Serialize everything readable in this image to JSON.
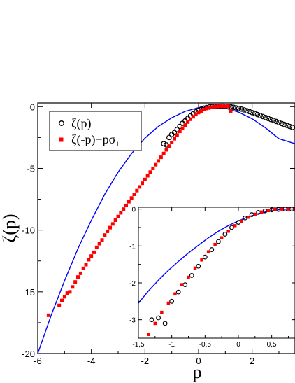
{
  "chart_data": [
    {
      "type": "scatter",
      "role": "main",
      "xlabel": "p",
      "ylabel": "ζ(p)",
      "xlim": [
        -6,
        3.6
      ],
      "ylim": [
        -20,
        0.3
      ],
      "xticks": [
        -6,
        -4,
        -2,
        0,
        2
      ],
      "yticks": [
        0,
        -5,
        -10,
        -15,
        -20
      ],
      "xtick_labels": [
        "-6",
        "-4",
        "-2",
        "0",
        "2"
      ],
      "ytick_labels": [
        "0",
        "-5",
        "-10",
        "-15",
        "-20"
      ],
      "legend": {
        "placement": "top-left",
        "entries": [
          {
            "label": "ζ(p)",
            "marker": "open-circle",
            "color": "#000000"
          },
          {
            "label": "ζ(-p)+pσ",
            "subscript": "+",
            "marker": "filled-square",
            "color": "#ff0000"
          }
        ]
      },
      "series": [
        {
          "name": "ζ(p)",
          "marker": "open-circle",
          "color": "#000000",
          "x": [
            -1.3,
            -1.2,
            -1.1,
            -1.0,
            -0.9,
            -0.8,
            -0.7,
            -0.6,
            -0.5,
            -0.4,
            -0.3,
            -0.2,
            -0.1,
            0.0,
            0.1,
            0.2,
            0.3,
            0.4,
            0.5,
            0.6,
            0.7,
            0.8,
            0.9,
            1.0,
            1.1,
            1.2,
            1.3,
            1.4,
            1.5,
            1.6,
            1.7,
            1.8,
            1.9,
            2.0,
            2.1,
            2.2,
            2.3,
            2.4,
            2.5,
            2.6,
            2.7,
            2.8,
            2.9,
            3.0,
            3.1,
            3.2,
            3.3,
            3.4,
            3.5
          ],
          "y": [
            -3.0,
            -3.1,
            -2.5,
            -2.25,
            -2.1,
            -1.85,
            -1.6,
            -1.35,
            -1.15,
            -0.95,
            -0.75,
            -0.57,
            -0.42,
            -0.3,
            -0.2,
            -0.12,
            -0.07,
            -0.03,
            0.0,
            0.02,
            0.03,
            0.04,
            0.04,
            0.03,
            0.02,
            0.0,
            -0.05,
            -0.1,
            -0.15,
            -0.2,
            -0.26,
            -0.33,
            -0.4,
            -0.48,
            -0.56,
            -0.64,
            -0.72,
            -0.8,
            -0.88,
            -0.96,
            -1.04,
            -1.12,
            -1.2,
            -1.28,
            -1.36,
            -1.44,
            -1.52,
            -1.6,
            -1.68
          ]
        },
        {
          "name": "ζ(-p)+pσ+",
          "marker": "filled-square",
          "color": "#ff0000",
          "x": [
            -5.6,
            -5.2,
            -5.1,
            -5.0,
            -4.9,
            -4.8,
            -4.7,
            -4.6,
            -4.5,
            -4.4,
            -4.3,
            -4.2,
            -4.1,
            -4.0,
            -3.9,
            -3.8,
            -3.7,
            -3.6,
            -3.5,
            -3.4,
            -3.3,
            -3.2,
            -3.1,
            -3.0,
            -2.9,
            -2.8,
            -2.7,
            -2.6,
            -2.5,
            -2.4,
            -2.3,
            -2.2,
            -2.1,
            -2.0,
            -1.9,
            -1.8,
            -1.7,
            -1.6,
            -1.5,
            -1.4,
            -1.3,
            -1.2,
            -1.1,
            -1.0,
            -0.9,
            -0.8,
            -0.7,
            -0.6,
            -0.5,
            -0.4,
            -0.3,
            -0.2,
            -0.1,
            0.0,
            0.1,
            0.2,
            0.3,
            0.4,
            0.5,
            0.6,
            0.7,
            0.8,
            0.9,
            1.0,
            1.1,
            1.2
          ],
          "y": [
            -16.9,
            -16.1,
            -15.7,
            -15.4,
            -15.1,
            -15.0,
            -14.6,
            -14.2,
            -13.8,
            -13.5,
            -13.1,
            -12.8,
            -12.4,
            -12.1,
            -11.8,
            -11.4,
            -11.1,
            -10.8,
            -10.4,
            -10.1,
            -9.8,
            -9.5,
            -9.2,
            -8.9,
            -8.6,
            -8.3,
            -8.0,
            -7.7,
            -7.4,
            -7.1,
            -6.8,
            -6.5,
            -6.2,
            -5.9,
            -5.6,
            -5.3,
            -5.0,
            -4.7,
            -4.4,
            -4.1,
            -3.8,
            -3.5,
            -3.2,
            -2.9,
            -2.6,
            -2.3,
            -2.0,
            -1.75,
            -1.5,
            -1.25,
            -1.02,
            -0.82,
            -0.64,
            -0.48,
            -0.35,
            -0.24,
            -0.15,
            -0.08,
            -0.03,
            0.0,
            0.02,
            0.03,
            0.03,
            0.02,
            0.05,
            -0.35
          ]
        },
        {
          "name": "",
          "marker": "line",
          "color": "#0000ff",
          "x": [
            -6.0,
            -5.5,
            -5.0,
            -4.5,
            -4.0,
            -3.5,
            -3.0,
            -2.5,
            -2.0,
            -1.5,
            -1.0,
            -0.5,
            0.0,
            0.5,
            1.0,
            1.5,
            2.0,
            2.5,
            3.0,
            3.6
          ],
          "y": [
            -20.0,
            -16.9,
            -14.1,
            -11.5,
            -9.2,
            -7.1,
            -5.3,
            -3.8,
            -2.55,
            -1.6,
            -0.9,
            -0.38,
            -0.08,
            0.0,
            -0.12,
            -0.45,
            -0.98,
            -1.72,
            -2.6,
            -3.0
          ]
        }
      ]
    },
    {
      "type": "scatter",
      "role": "inset",
      "xlim": [
        -1.5,
        0.85
      ],
      "ylim": [
        -3.5,
        0.05
      ],
      "xticks": [
        -1.5,
        -1,
        -0.5,
        0,
        0.5
      ],
      "yticks": [
        0,
        -1,
        -2,
        -3
      ],
      "xtick_labels": [
        "-1,5",
        "-1",
        "-0,5",
        "0",
        "0,5"
      ],
      "ytick_labels": [
        "0",
        "-1",
        "-2",
        "-3"
      ],
      "series": [
        {
          "name": "ζ(p)",
          "marker": "open-circle",
          "color": "#000000",
          "x": [
            -1.3,
            -1.2,
            -1.1,
            -1.0,
            -0.9,
            -0.8,
            -0.7,
            -0.6,
            -0.5,
            -0.4,
            -0.3,
            -0.2,
            -0.1,
            0.0,
            0.1,
            0.2,
            0.3,
            0.4,
            0.5,
            0.6,
            0.7,
            0.8
          ],
          "y": [
            -3.0,
            -2.95,
            -3.1,
            -2.5,
            -2.25,
            -2.05,
            -1.8,
            -1.55,
            -1.3,
            -1.1,
            -0.88,
            -0.68,
            -0.5,
            -0.36,
            -0.24,
            -0.15,
            -0.09,
            -0.05,
            -0.02,
            -0.01,
            0.0,
            0.0
          ]
        },
        {
          "name": "ζ(-p)+pσ+",
          "marker": "filled-square",
          "color": "#ff0000",
          "x": [
            -1.35,
            -1.25,
            -1.15,
            -1.05,
            -0.95,
            -0.85,
            -0.75,
            -0.65,
            -0.55,
            -0.45,
            -0.35,
            -0.25,
            -0.15,
            -0.05,
            0.05,
            0.15,
            0.25,
            0.35,
            0.45,
            0.55,
            0.65,
            0.75,
            0.85
          ],
          "y": [
            -3.4,
            -3.1,
            -2.8,
            -2.55,
            -2.3,
            -2.05,
            -1.85,
            -1.6,
            -1.38,
            -1.16,
            -0.96,
            -0.78,
            -0.6,
            -0.45,
            -0.33,
            -0.22,
            -0.14,
            -0.08,
            -0.04,
            -0.01,
            0.0,
            0.0,
            0.0
          ]
        },
        {
          "name": "",
          "marker": "line",
          "color": "#0000ff",
          "x": [
            -1.5,
            -1.35,
            -1.2,
            -1.05,
            -0.9,
            -0.75,
            -0.6,
            -0.45,
            -0.3,
            -0.15,
            0.0,
            0.15,
            0.3,
            0.45,
            0.6,
            0.75,
            0.85
          ],
          "y": [
            -2.55,
            -2.22,
            -1.93,
            -1.66,
            -1.42,
            -1.19,
            -0.98,
            -0.78,
            -0.6,
            -0.45,
            -0.32,
            -0.21,
            -0.12,
            -0.06,
            -0.02,
            0.0,
            0.0
          ]
        }
      ]
    }
  ]
}
